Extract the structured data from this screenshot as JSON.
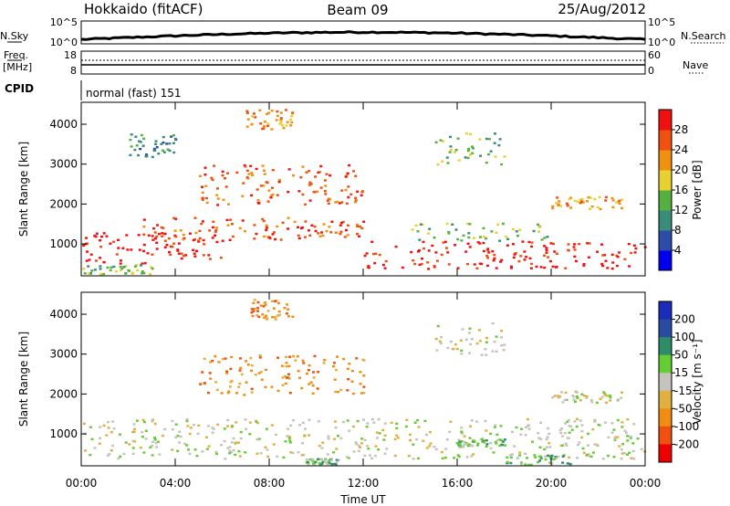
{
  "header": {
    "station": "Hokkaido (fitACF)",
    "beam": "Beam 09",
    "date": "25/Aug/2012"
  },
  "top_panels": {
    "nsky": {
      "label": "N.Sky",
      "ticks": [
        "10^5",
        "10^0"
      ]
    },
    "nsearch": {
      "label": "N.Search",
      "ticks": [
        "10^5",
        "10^0"
      ]
    },
    "freq": {
      "label_line1": "Freq.",
      "label_line2": "[MHz]",
      "ticks": [
        "18",
        "8"
      ]
    },
    "nave": {
      "label": "Nave",
      "ticks": [
        "60",
        "0"
      ]
    },
    "cpid": {
      "label": "CPID",
      "value": "normal (fast) 151"
    }
  },
  "colors": {
    "power": [
      "#0000ee",
      "#2c4ca8",
      "#3a8c7a",
      "#55b040",
      "#e8d030",
      "#f09010",
      "#f05010",
      "#f01010"
    ],
    "velocity": [
      "#ee0000",
      "#f05010",
      "#f08c10",
      "#e0b040",
      "#c4c4bc",
      "#66cc33",
      "#2e8c6a",
      "#2a4ca0",
      "#1a2cb8"
    ]
  },
  "chart_data": [
    {
      "type": "heatmap",
      "name": "power",
      "ylabel": "Slant Range [km]",
      "xlabel": "",
      "x_ticks": [
        "00:00",
        "04:00",
        "08:00",
        "12:00",
        "16:00",
        "20:00",
        "00:00"
      ],
      "y_ticks": [
        1000,
        2000,
        3000,
        4000
      ],
      "xlim": [
        0,
        24
      ],
      "ylim": [
        200,
        4550
      ],
      "colorbar": {
        "label": "Power [dB]",
        "ticks": [
          "4",
          "8",
          "12",
          "16",
          "20",
          "24",
          "28"
        ],
        "range": [
          0,
          32
        ]
      },
      "regions": [
        {
          "x": [
            0,
            6
          ],
          "y": [
            500,
            1300
          ],
          "level": 7
        },
        {
          "x": [
            2.5,
            9
          ],
          "y": [
            1100,
            1700
          ],
          "level": 6
        },
        {
          "x": [
            9,
            12
          ],
          "y": [
            1100,
            1600
          ],
          "level": 6
        },
        {
          "x": [
            12,
            24
          ],
          "y": [
            400,
            1100
          ],
          "level": 7
        },
        {
          "x": [
            14,
            20
          ],
          "y": [
            1100,
            1550
          ],
          "level": 3
        },
        {
          "x": [
            5,
            12
          ],
          "y": [
            2000,
            3000
          ],
          "level": 6
        },
        {
          "x": [
            7,
            9
          ],
          "y": [
            3900,
            4400
          ],
          "level": 5
        },
        {
          "x": [
            2,
            4
          ],
          "y": [
            3200,
            3800
          ],
          "level": 2
        },
        {
          "x": [
            15,
            18
          ],
          "y": [
            3000,
            3800
          ],
          "level": 3
        },
        {
          "x": [
            0,
            3
          ],
          "y": [
            250,
            500
          ],
          "level": 3
        },
        {
          "x": [
            20,
            23
          ],
          "y": [
            1900,
            2200
          ],
          "level": 5
        }
      ]
    },
    {
      "type": "heatmap",
      "name": "velocity",
      "ylabel": "Slant Range [km]",
      "xlabel": "Time UT",
      "x_ticks": [
        "00:00",
        "04:00",
        "08:00",
        "12:00",
        "16:00",
        "20:00",
        "00:00"
      ],
      "y_ticks": [
        1000,
        2000,
        3000,
        4000
      ],
      "xlim": [
        0,
        24
      ],
      "ylim": [
        200,
        4550
      ],
      "colorbar": {
        "label": "Velocity [m s⁻¹]",
        "ticks": [
          "200",
          "100",
          "50",
          "15",
          "-15",
          "-50",
          "-100",
          "-200"
        ],
        "range": [
          -250,
          250
        ]
      },
      "regions": [
        {
          "x": [
            0,
            24
          ],
          "y": [
            400,
            1400
          ],
          "level": 4
        },
        {
          "x": [
            5,
            12
          ],
          "y": [
            2000,
            3000
          ],
          "level": 2
        },
        {
          "x": [
            7,
            9
          ],
          "y": [
            3900,
            4400
          ],
          "level": 2
        },
        {
          "x": [
            16,
            18
          ],
          "y": [
            700,
            900
          ],
          "level": 5
        },
        {
          "x": [
            18,
            21
          ],
          "y": [
            250,
            500
          ],
          "level": 5
        },
        {
          "x": [
            9.5,
            11
          ],
          "y": [
            250,
            400
          ],
          "level": 5
        },
        {
          "x": [
            15,
            18
          ],
          "y": [
            3000,
            3800
          ],
          "level": 4
        },
        {
          "x": [
            20,
            23
          ],
          "y": [
            1800,
            2100
          ],
          "level": 4
        }
      ]
    }
  ]
}
